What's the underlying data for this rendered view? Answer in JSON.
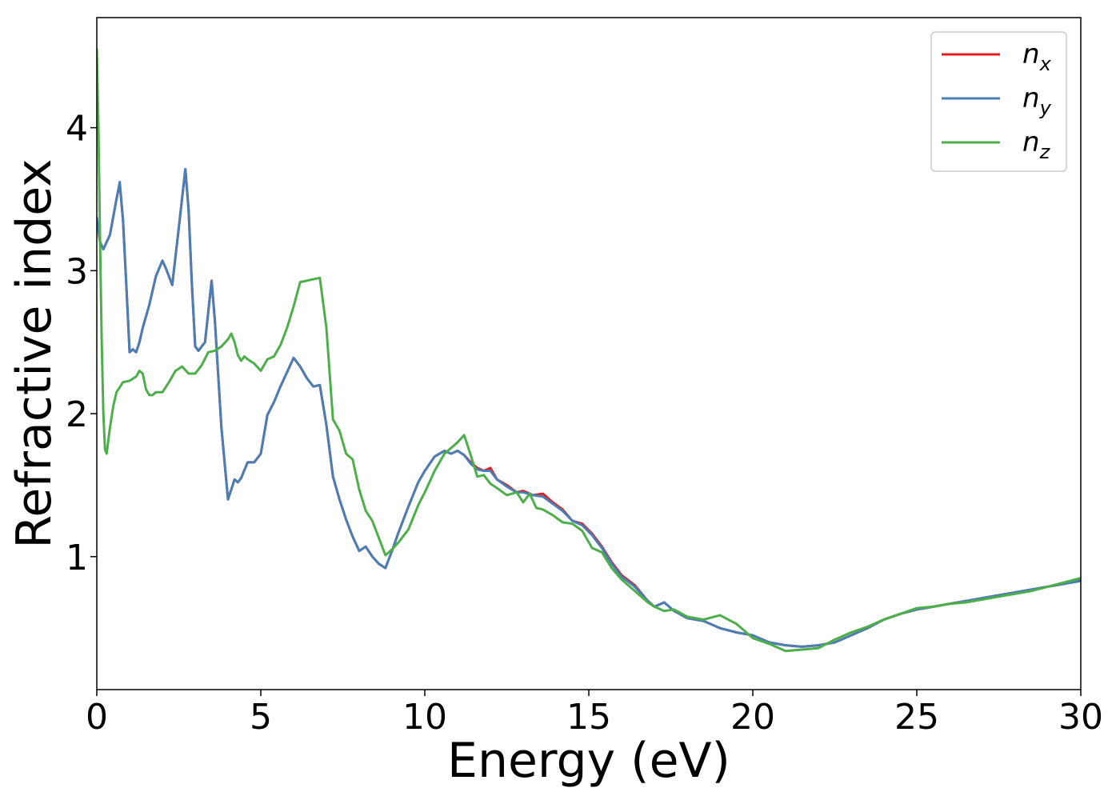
{
  "chart_data": {
    "type": "line",
    "title": "",
    "xlabel": "Energy (eV)",
    "ylabel": "Refractive index",
    "xlim": [
      0,
      30
    ],
    "ylim": [
      0.07,
      4.77
    ],
    "xticks": [
      0,
      5,
      10,
      15,
      20,
      25,
      30
    ],
    "yticks": [
      1,
      2,
      3,
      4
    ],
    "grid": false,
    "legend_position": "top-right",
    "series": [
      {
        "key": "nx",
        "name": "n",
        "subscript": "x",
        "color": "#e41a1c",
        "x": [
          0,
          0.1,
          0.2,
          0.4,
          0.6,
          0.7,
          0.8,
          0.9,
          1.0,
          1.1,
          1.2,
          1.3,
          1.4,
          1.6,
          1.8,
          2.0,
          2.1,
          2.3,
          2.5,
          2.7,
          2.8,
          2.9,
          3.0,
          3.1,
          3.3,
          3.5,
          3.6,
          3.8,
          4.0,
          4.1,
          4.2,
          4.3,
          4.4,
          4.6,
          4.8,
          5.0,
          5.2,
          5.4,
          5.6,
          5.8,
          6.0,
          6.2,
          6.4,
          6.6,
          6.8,
          7.0,
          7.2,
          7.4,
          7.6,
          7.8,
          8.0,
          8.2,
          8.4,
          8.6,
          8.8,
          9.0,
          9.2,
          9.5,
          9.8,
          10.0,
          10.3,
          10.6,
          10.8,
          11.0,
          11.2,
          11.4,
          11.6,
          11.8,
          12.0,
          12.2,
          12.5,
          12.8,
          13.0,
          13.3,
          13.6,
          13.9,
          14.2,
          14.5,
          14.8,
          15.1,
          15.4,
          15.7,
          16.0,
          16.4,
          16.8,
          17.0,
          17.3,
          17.6,
          18.0,
          18.5,
          19.0,
          19.5,
          20.0,
          20.5,
          21.0,
          21.5,
          22.0,
          22.5,
          23.0,
          23.5,
          24.0,
          24.5,
          25.0,
          25.5,
          26.0,
          26.5,
          27.0,
          27.5,
          28.0,
          28.5,
          29.0,
          29.5,
          30.0
        ],
        "y": [
          3.36,
          3.2,
          3.15,
          3.25,
          3.5,
          3.61,
          3.35,
          2.9,
          2.43,
          2.45,
          2.43,
          2.5,
          2.6,
          2.76,
          2.96,
          3.07,
          3.02,
          2.9,
          3.3,
          3.71,
          3.42,
          2.9,
          2.47,
          2.44,
          2.5,
          2.93,
          2.65,
          1.9,
          1.4,
          1.47,
          1.54,
          1.52,
          1.55,
          1.66,
          1.66,
          1.72,
          1.99,
          2.08,
          2.19,
          2.29,
          2.39,
          2.33,
          2.25,
          2.19,
          2.2,
          1.92,
          1.56,
          1.4,
          1.26,
          1.14,
          1.04,
          1.07,
          1.0,
          0.95,
          0.92,
          1.04,
          1.17,
          1.35,
          1.52,
          1.6,
          1.7,
          1.74,
          1.72,
          1.74,
          1.71,
          1.66,
          1.62,
          1.6,
          1.62,
          1.54,
          1.5,
          1.45,
          1.46,
          1.43,
          1.44,
          1.38,
          1.33,
          1.25,
          1.23,
          1.16,
          1.07,
          0.96,
          0.87,
          0.8,
          0.69,
          0.65,
          0.68,
          0.62,
          0.57,
          0.55,
          0.5,
          0.47,
          0.45,
          0.4,
          0.38,
          0.37,
          0.38,
          0.4,
          0.45,
          0.5,
          0.56,
          0.6,
          0.63,
          0.65,
          0.67,
          0.69,
          0.71,
          0.73,
          0.75,
          0.77,
          0.79,
          0.81,
          0.84
        ]
      },
      {
        "key": "ny",
        "name": "n",
        "subscript": "y",
        "color": "#4a7fb5",
        "x": [
          0,
          0.1,
          0.2,
          0.4,
          0.6,
          0.7,
          0.8,
          0.9,
          1.0,
          1.1,
          1.2,
          1.3,
          1.4,
          1.6,
          1.8,
          2.0,
          2.1,
          2.3,
          2.5,
          2.7,
          2.8,
          2.9,
          3.0,
          3.1,
          3.3,
          3.5,
          3.6,
          3.8,
          4.0,
          4.1,
          4.2,
          4.3,
          4.4,
          4.6,
          4.8,
          5.0,
          5.2,
          5.4,
          5.6,
          5.8,
          6.0,
          6.2,
          6.4,
          6.6,
          6.8,
          7.0,
          7.2,
          7.4,
          7.6,
          7.8,
          8.0,
          8.2,
          8.4,
          8.6,
          8.8,
          9.0,
          9.2,
          9.5,
          9.8,
          10.0,
          10.3,
          10.6,
          10.8,
          11.0,
          11.2,
          11.4,
          11.6,
          11.8,
          12.0,
          12.2,
          12.5,
          12.8,
          13.0,
          13.3,
          13.6,
          13.9,
          14.2,
          14.5,
          14.8,
          15.1,
          15.4,
          15.7,
          16.0,
          16.4,
          16.8,
          17.0,
          17.3,
          17.6,
          18.0,
          18.5,
          19.0,
          19.5,
          20.0,
          20.5,
          21.0,
          21.5,
          22.0,
          22.5,
          23.0,
          23.5,
          24.0,
          24.5,
          25.0,
          25.5,
          26.0,
          26.5,
          27.0,
          27.5,
          28.0,
          28.5,
          29.0,
          29.5,
          30.0
        ],
        "y": [
          3.37,
          3.2,
          3.15,
          3.25,
          3.5,
          3.62,
          3.35,
          2.9,
          2.43,
          2.45,
          2.43,
          2.5,
          2.6,
          2.76,
          2.96,
          3.07,
          3.02,
          2.9,
          3.3,
          3.71,
          3.42,
          2.9,
          2.47,
          2.44,
          2.5,
          2.93,
          2.65,
          1.9,
          1.4,
          1.47,
          1.54,
          1.52,
          1.55,
          1.66,
          1.66,
          1.72,
          1.99,
          2.08,
          2.19,
          2.29,
          2.39,
          2.33,
          2.25,
          2.19,
          2.2,
          1.92,
          1.56,
          1.4,
          1.26,
          1.14,
          1.04,
          1.07,
          1.0,
          0.95,
          0.92,
          1.04,
          1.17,
          1.35,
          1.52,
          1.6,
          1.7,
          1.74,
          1.72,
          1.74,
          1.71,
          1.65,
          1.61,
          1.6,
          1.6,
          1.54,
          1.49,
          1.45,
          1.45,
          1.43,
          1.42,
          1.37,
          1.32,
          1.25,
          1.22,
          1.15,
          1.06,
          0.95,
          0.86,
          0.79,
          0.69,
          0.65,
          0.68,
          0.62,
          0.57,
          0.55,
          0.5,
          0.47,
          0.45,
          0.4,
          0.38,
          0.37,
          0.38,
          0.4,
          0.45,
          0.5,
          0.56,
          0.6,
          0.63,
          0.65,
          0.67,
          0.69,
          0.71,
          0.73,
          0.75,
          0.77,
          0.79,
          0.81,
          0.83
        ]
      },
      {
        "key": "nz",
        "name": "n",
        "subscript": "z",
        "color": "#4daf4a",
        "x": [
          0,
          0.05,
          0.1,
          0.15,
          0.2,
          0.25,
          0.3,
          0.4,
          0.5,
          0.6,
          0.8,
          1.0,
          1.2,
          1.3,
          1.4,
          1.5,
          1.6,
          1.7,
          1.8,
          2.0,
          2.2,
          2.4,
          2.6,
          2.8,
          3.0,
          3.2,
          3.4,
          3.6,
          3.8,
          4.0,
          4.1,
          4.2,
          4.3,
          4.4,
          4.5,
          4.6,
          4.8,
          5.0,
          5.2,
          5.4,
          5.6,
          5.8,
          6.0,
          6.2,
          6.4,
          6.6,
          6.8,
          7.0,
          7.2,
          7.4,
          7.6,
          7.8,
          8.0,
          8.2,
          8.4,
          8.6,
          8.8,
          9.0,
          9.2,
          9.5,
          9.8,
          10.0,
          10.3,
          10.6,
          10.8,
          11.0,
          11.2,
          11.4,
          11.6,
          11.8,
          12.0,
          12.2,
          12.5,
          12.8,
          13.0,
          13.2,
          13.4,
          13.6,
          13.9,
          14.2,
          14.5,
          14.8,
          15.1,
          15.4,
          15.7,
          16.0,
          16.4,
          16.8,
          17.0,
          17.3,
          17.6,
          18.0,
          18.5,
          19.0,
          19.5,
          20.0,
          20.5,
          21.0,
          21.5,
          22.0,
          22.5,
          23.0,
          23.5,
          24.0,
          24.5,
          25.0,
          25.5,
          26.0,
          26.5,
          27.0,
          27.5,
          28.0,
          28.5,
          29.0,
          29.5,
          30.0
        ],
        "y": [
          4.55,
          4.0,
          3.2,
          2.5,
          2.0,
          1.75,
          1.72,
          1.9,
          2.05,
          2.15,
          2.22,
          2.23,
          2.26,
          2.3,
          2.28,
          2.17,
          2.13,
          2.13,
          2.15,
          2.15,
          2.22,
          2.3,
          2.33,
          2.28,
          2.28,
          2.34,
          2.43,
          2.44,
          2.47,
          2.52,
          2.56,
          2.5,
          2.41,
          2.37,
          2.4,
          2.38,
          2.35,
          2.3,
          2.38,
          2.4,
          2.48,
          2.6,
          2.75,
          2.92,
          2.93,
          2.94,
          2.95,
          2.6,
          1.96,
          1.88,
          1.72,
          1.68,
          1.47,
          1.32,
          1.25,
          1.13,
          1.01,
          1.05,
          1.1,
          1.19,
          1.36,
          1.45,
          1.6,
          1.72,
          1.76,
          1.8,
          1.85,
          1.71,
          1.56,
          1.57,
          1.51,
          1.48,
          1.43,
          1.45,
          1.38,
          1.44,
          1.34,
          1.33,
          1.29,
          1.24,
          1.23,
          1.18,
          1.06,
          1.03,
          0.92,
          0.84,
          0.76,
          0.68,
          0.65,
          0.62,
          0.63,
          0.58,
          0.56,
          0.59,
          0.53,
          0.43,
          0.39,
          0.34,
          0.35,
          0.36,
          0.42,
          0.47,
          0.51,
          0.56,
          0.6,
          0.64,
          0.65,
          0.67,
          0.68,
          0.7,
          0.72,
          0.74,
          0.76,
          0.79,
          0.82,
          0.85
        ]
      }
    ]
  }
}
